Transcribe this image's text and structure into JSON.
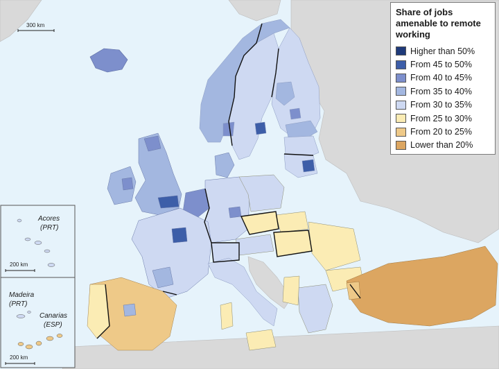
{
  "legend": {
    "title": "Share of jobs\namenable to remote\nworking",
    "items": [
      {
        "label": "Higher than 50%",
        "color": "#1f3a7a"
      },
      {
        "label": "From 45 to 50%",
        "color": "#3d5ea8"
      },
      {
        "label": "From 40 to 45%",
        "color": "#7d8fcc"
      },
      {
        "label": "From 35 to 40%",
        "color": "#a3b7e0"
      },
      {
        "label": "From 30 to 35%",
        "color": "#ced9f2"
      },
      {
        "label": "From 25 to 30%",
        "color": "#fbecb4"
      },
      {
        "label": "From 20 to 25%",
        "color": "#eec988"
      },
      {
        "label": "Lower than 20%",
        "color": "#dca661"
      }
    ]
  },
  "scalebars": {
    "main": "300 km",
    "acores": "200 km",
    "madeira": "200 km"
  },
  "insets": {
    "acores": {
      "name": "Acores",
      "code": "(PRT)"
    },
    "madeira": {
      "name": "Madeira",
      "code": "(PRT)"
    },
    "canarias": {
      "name": "Canarias",
      "code": "(ESP)"
    }
  },
  "colors": {
    "sea": "#e6f3fb",
    "non_eu_land": "#d9d9d9",
    "borders": "#1a1a1a"
  }
}
